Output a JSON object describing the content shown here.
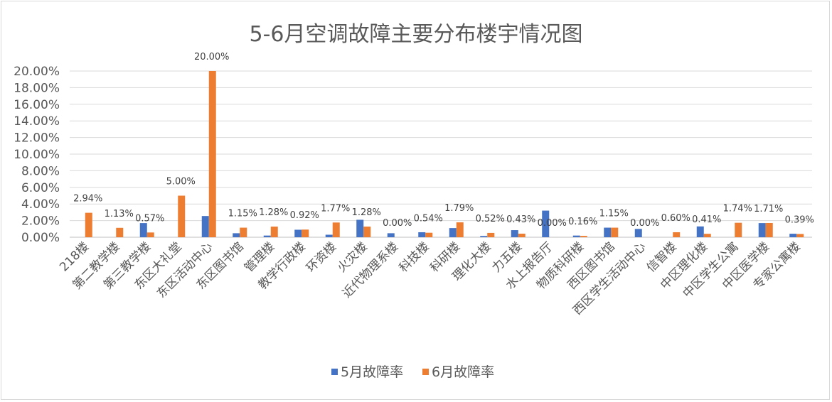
{
  "chart_data": {
    "type": "bar",
    "title": "5-6月空调故障主要分布楼宇情况图",
    "xlabel": "",
    "ylabel": "",
    "ylim": [
      0,
      20
    ],
    "yticks": [
      "0.00%",
      "2.00%",
      "4.00%",
      "6.00%",
      "8.00%",
      "10.00%",
      "12.00%",
      "14.00%",
      "16.00%",
      "18.00%",
      "20.00%"
    ],
    "grid": true,
    "legend_position": "bottom",
    "categories": [
      "218楼",
      "第二教学楼",
      "第三教学楼",
      "东区大礼堂",
      "东区活动中心",
      "东区图书馆",
      "管理楼",
      "教学行政楼",
      "环资楼",
      "火灾楼",
      "近代物理系楼",
      "科技楼",
      "科研楼",
      "理化大楼",
      "力五楼",
      "水上报告厅",
      "物质科研楼",
      "西区图书馆",
      "西区学生活动中心",
      "信智楼",
      "中区理化楼",
      "中区学生公寓",
      "中区医学楼",
      "专家公寓楼"
    ],
    "series": [
      {
        "name": "5月故障率",
        "color": "#4472c4",
        "values": [
          0,
          0,
          1.7,
          0,
          2.55,
          0.48,
          0.2,
          0.9,
          0.3,
          2.1,
          0.48,
          0.6,
          1.1,
          0.15,
          0.85,
          3.2,
          0.2,
          1.15,
          1.0,
          0,
          1.3,
          0,
          1.7,
          0.42
        ]
      },
      {
        "name": "6月故障率",
        "color": "#ed7d31",
        "values": [
          2.94,
          1.13,
          0.57,
          5.0,
          20.0,
          1.15,
          1.28,
          0.92,
          1.77,
          1.28,
          0.0,
          0.54,
          1.79,
          0.52,
          0.43,
          0.0,
          0.16,
          1.15,
          0.0,
          0.6,
          0.41,
          1.74,
          1.71,
          0.39
        ],
        "labels": [
          "2.94%",
          "1.13%",
          "0.57%",
          "5.00%",
          "20.00%",
          "1.15%",
          "1.28%",
          "0.92%",
          "1.77%",
          "1.28%",
          "0.00%",
          "0.54%",
          "1.79%",
          "0.52%",
          "0.43%",
          "0.00%",
          "0.16%",
          "1.15%",
          "0.00%",
          "0.60%",
          "0.41%",
          "1.74%",
          "1.71%",
          "0.39%"
        ]
      }
    ]
  }
}
